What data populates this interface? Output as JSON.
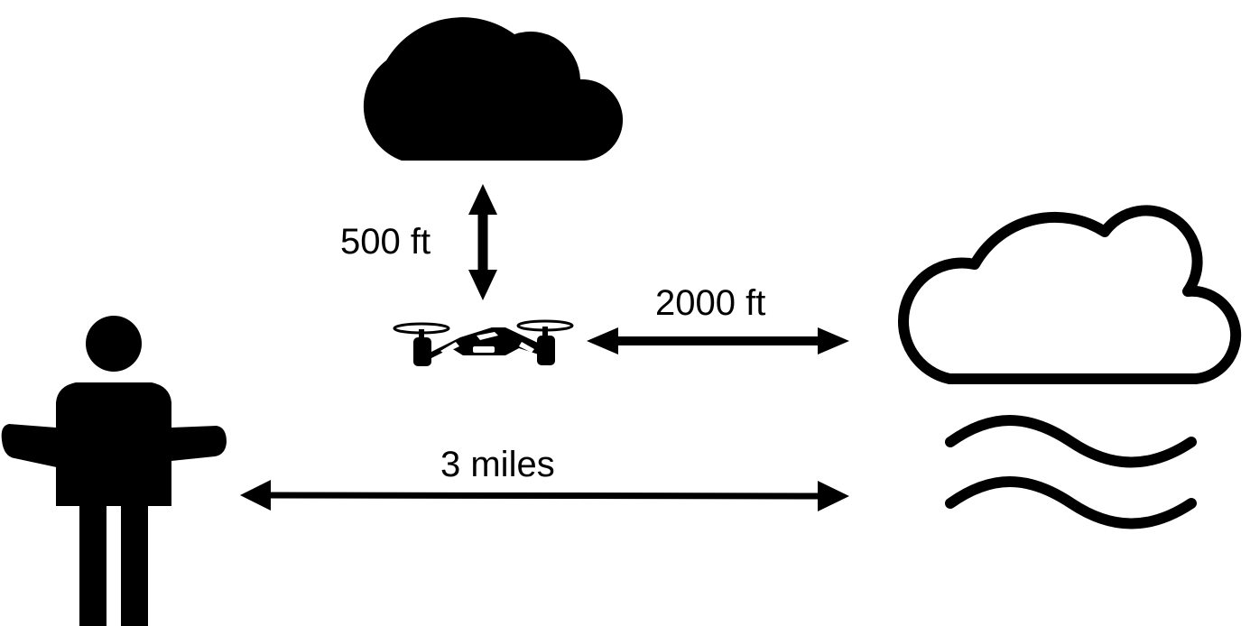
{
  "diagram": {
    "labels": {
      "vertical_distance": "500 ft",
      "horizontal_distance": "2000 ft",
      "ground_visibility": "3 miles"
    },
    "icons": {
      "cloud_above": "cloud-solid-icon",
      "drone": "drone-icon",
      "cloud_distant": "cloud-outline-icon",
      "fog": "fog-waves-icon",
      "person": "person-shrug-icon"
    },
    "colors": {
      "ink": "#000000",
      "background": "#ffffff"
    }
  }
}
